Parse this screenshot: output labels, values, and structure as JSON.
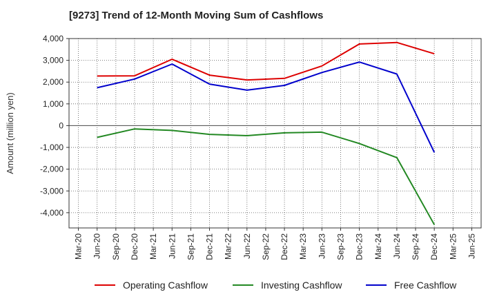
{
  "chart_data": {
    "type": "line",
    "title": "[9273]  Trend of 12-Month Moving Sum of Cashflows",
    "ylabel": "Amount (million yen)",
    "xlabel": "",
    "categories": [
      "Mar-20",
      "Jun-20",
      "Sep-20",
      "Dec-20",
      "Mar-21",
      "Jun-21",
      "Sep-21",
      "Dec-21",
      "Mar-22",
      "Jun-22",
      "Sep-22",
      "Dec-22",
      "Mar-23",
      "Jun-23",
      "Sep-23",
      "Dec-23",
      "Mar-24",
      "Jun-24",
      "Sep-24",
      "Dec-24",
      "Mar-25",
      "Jun-25"
    ],
    "ylim": [
      -4700,
      4000
    ],
    "yticks": [
      4000,
      3000,
      2000,
      1000,
      0,
      -1000,
      -2000,
      -3000,
      -4000
    ],
    "ytick_labels": [
      "4,000",
      "3,000",
      "2,000",
      "1,000",
      "0",
      "-1,000",
      "-2,000",
      "-3,000",
      "-4,000"
    ],
    "grid": true,
    "legend_position": "bottom",
    "series": [
      {
        "name": "Operating Cashflow",
        "color": "#dd0000",
        "values": [
          null,
          2280,
          null,
          2290,
          null,
          3050,
          null,
          2320,
          null,
          2100,
          null,
          2170,
          null,
          2740,
          null,
          3750,
          null,
          3820,
          null,
          3300,
          null,
          null
        ]
      },
      {
        "name": "Investing Cashflow",
        "color": "#228822",
        "values": [
          null,
          -540,
          null,
          -150,
          null,
          -220,
          null,
          -400,
          null,
          -460,
          null,
          -330,
          null,
          -300,
          null,
          -820,
          null,
          -1470,
          null,
          -4550,
          null,
          null
        ]
      },
      {
        "name": "Free Cashflow",
        "color": "#0000cc",
        "values": [
          null,
          1740,
          null,
          2140,
          null,
          2830,
          null,
          1910,
          null,
          1630,
          null,
          1850,
          null,
          2440,
          null,
          2920,
          null,
          2370,
          null,
          -1230,
          null,
          null
        ]
      }
    ]
  }
}
